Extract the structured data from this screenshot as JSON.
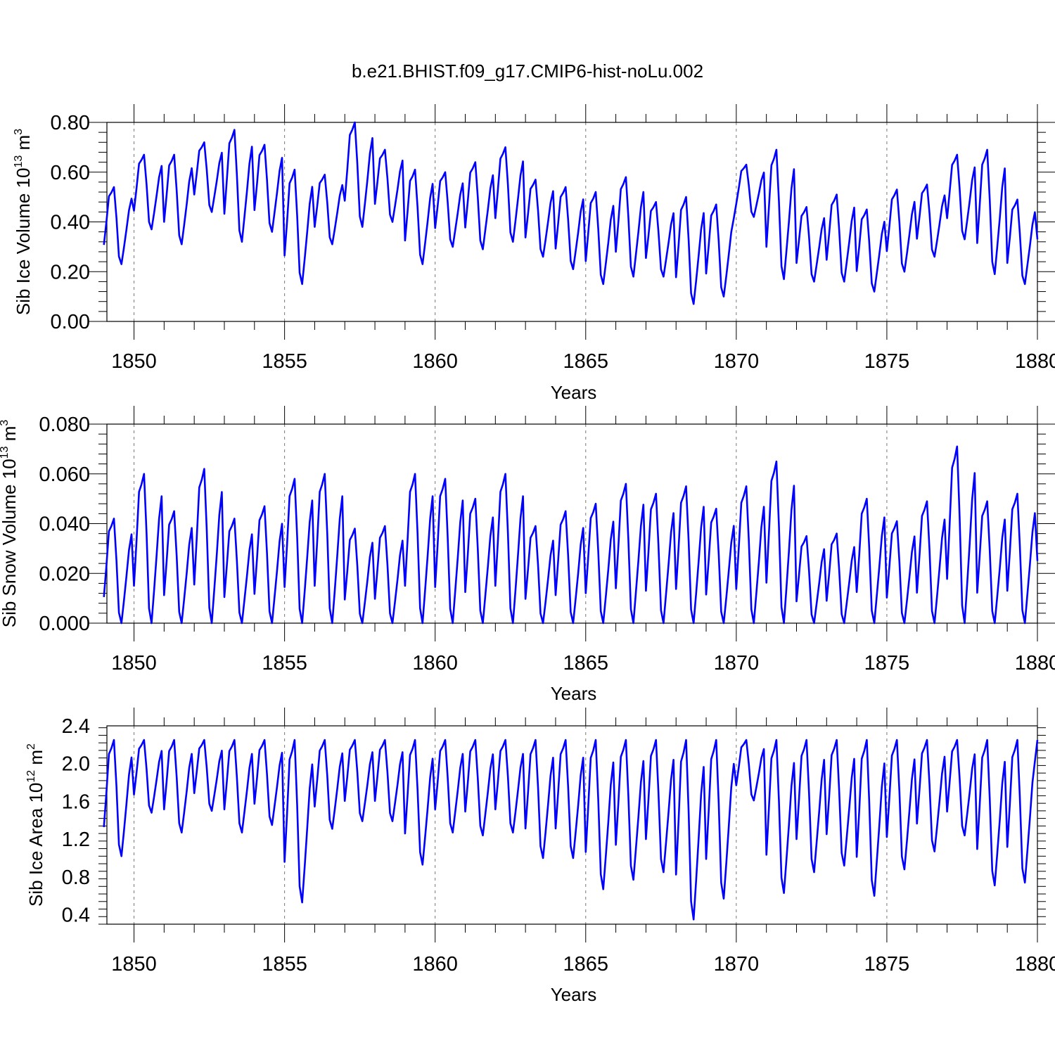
{
  "title": "b.e21.BHIST.f09_g17.CMIP6-hist-noLu.002",
  "colors": {
    "series": "#0000ff",
    "axis": "#000000",
    "grid": "#777777"
  },
  "chart_data": [
    {
      "type": "line",
      "name": "ice-volume",
      "ylabel": {
        "text": "Sib Ice Volume 10",
        "exp": "13",
        "unit": " m",
        "unit_exp": "3"
      },
      "xlabel": "Years",
      "xlim": [
        1849.1,
        1880.0
      ],
      "ylim": [
        0.0,
        0.8
      ],
      "xticks": [
        1850,
        1855,
        1860,
        1865,
        1870,
        1875,
        1880
      ],
      "xtick_labels": [
        "1850",
        "1855",
        "1860",
        "1865",
        "1870",
        "1875",
        "1880"
      ],
      "yticks": [
        0.0,
        0.2,
        0.4,
        0.6,
        0.8
      ],
      "ytick_labels": [
        "0.00",
        "0.20",
        "0.40",
        "0.60",
        "0.80"
      ],
      "gridlines": [
        1850,
        1855,
        1860,
        1865,
        1870,
        1875
      ],
      "series_name": "Sib Ice Volume",
      "start_year": 1849.0,
      "step_years": 0.08333,
      "annual": [
        {
          "max": 0.54,
          "min": 0.23
        },
        {
          "max": 0.67,
          "min": 0.37
        },
        {
          "max": 0.67,
          "min": 0.31
        },
        {
          "max": 0.72,
          "min": 0.44
        },
        {
          "max": 0.77,
          "min": 0.32
        },
        {
          "max": 0.71,
          "min": 0.36
        },
        {
          "max": 0.61,
          "min": 0.15
        },
        {
          "max": 0.59,
          "min": 0.31
        },
        {
          "max": 0.8,
          "min": 0.38
        },
        {
          "max": 0.69,
          "min": 0.4
        },
        {
          "max": 0.61,
          "min": 0.23
        },
        {
          "max": 0.6,
          "min": 0.3
        },
        {
          "max": 0.64,
          "min": 0.29
        },
        {
          "max": 0.7,
          "min": 0.32
        },
        {
          "max": 0.57,
          "min": 0.26
        },
        {
          "max": 0.54,
          "min": 0.21
        },
        {
          "max": 0.52,
          "min": 0.15
        },
        {
          "max": 0.58,
          "min": 0.18
        },
        {
          "max": 0.48,
          "min": 0.18
        },
        {
          "max": 0.5,
          "min": 0.07
        },
        {
          "max": 0.47,
          "min": 0.1
        },
        {
          "max": 0.63,
          "min": 0.42
        },
        {
          "max": 0.69,
          "min": 0.17
        },
        {
          "max": 0.46,
          "min": 0.16
        },
        {
          "max": 0.51,
          "min": 0.16
        },
        {
          "max": 0.45,
          "min": 0.12
        },
        {
          "max": 0.53,
          "min": 0.2
        },
        {
          "max": 0.55,
          "min": 0.26
        },
        {
          "max": 0.67,
          "min": 0.33
        },
        {
          "max": 0.69,
          "min": 0.19
        },
        {
          "max": 0.49,
          "min": 0.15
        },
        {
          "max": 0.33,
          "min": 0.33
        }
      ]
    },
    {
      "type": "line",
      "name": "snow-volume",
      "ylabel": {
        "text": "Sib Snow Volume 10",
        "exp": "13",
        "unit": " m",
        "unit_exp": "3"
      },
      "xlabel": "Years",
      "xlim": [
        1849.1,
        1880.0
      ],
      "ylim": [
        0.0,
        0.08
      ],
      "xticks": [
        1850,
        1855,
        1860,
        1865,
        1870,
        1875,
        1880
      ],
      "xtick_labels": [
        "1850",
        "1855",
        "1860",
        "1865",
        "1870",
        "1875",
        "1880"
      ],
      "yticks": [
        0.0,
        0.02,
        0.04,
        0.06,
        0.08
      ],
      "ytick_labels": [
        "0.000",
        "0.020",
        "0.040",
        "0.060",
        "0.080"
      ],
      "gridlines": [
        1850,
        1855,
        1860,
        1865,
        1870,
        1875
      ],
      "series_name": "Sib Snow Volume",
      "start_year": 1849.0,
      "step_years": 0.08333,
      "annual": [
        {
          "max": 0.042,
          "min": 0.0
        },
        {
          "max": 0.06,
          "min": 0.0
        },
        {
          "max": 0.045,
          "min": 0.0
        },
        {
          "max": 0.062,
          "min": 0.0
        },
        {
          "max": 0.042,
          "min": 0.0
        },
        {
          "max": 0.047,
          "min": 0.0
        },
        {
          "max": 0.058,
          "min": 0.0
        },
        {
          "max": 0.06,
          "min": 0.0
        },
        {
          "max": 0.038,
          "min": 0.0
        },
        {
          "max": 0.039,
          "min": 0.0
        },
        {
          "max": 0.06,
          "min": 0.0
        },
        {
          "max": 0.058,
          "min": 0.0
        },
        {
          "max": 0.05,
          "min": 0.0
        },
        {
          "max": 0.06,
          "min": 0.0
        },
        {
          "max": 0.039,
          "min": 0.0
        },
        {
          "max": 0.045,
          "min": 0.0
        },
        {
          "max": 0.048,
          "min": 0.0
        },
        {
          "max": 0.056,
          "min": 0.0
        },
        {
          "max": 0.052,
          "min": 0.0
        },
        {
          "max": 0.055,
          "min": 0.0
        },
        {
          "max": 0.046,
          "min": 0.0
        },
        {
          "max": 0.055,
          "min": 0.0
        },
        {
          "max": 0.065,
          "min": 0.0
        },
        {
          "max": 0.035,
          "min": 0.0
        },
        {
          "max": 0.036,
          "min": 0.0
        },
        {
          "max": 0.05,
          "min": 0.0
        },
        {
          "max": 0.041,
          "min": 0.0
        },
        {
          "max": 0.049,
          "min": 0.0
        },
        {
          "max": 0.071,
          "min": 0.0
        },
        {
          "max": 0.049,
          "min": 0.0
        },
        {
          "max": 0.052,
          "min": 0.0
        },
        {
          "max": 0.025,
          "min": 0.025
        }
      ]
    },
    {
      "type": "line",
      "name": "ice-area",
      "ylabel": {
        "text": "Sib Ice Area 10",
        "exp": "12",
        "unit": " m",
        "unit_exp": "2"
      },
      "xlabel": "Years",
      "xlim": [
        1849.1,
        1880.0
      ],
      "ylim": [
        0.3,
        2.4
      ],
      "xticks": [
        1850,
        1855,
        1860,
        1865,
        1870,
        1875,
        1880
      ],
      "xtick_labels": [
        "1850",
        "1855",
        "1860",
        "1865",
        "1870",
        "1875",
        "1880"
      ],
      "yticks": [
        0.4,
        0.8,
        1.2,
        1.6,
        2.0,
        2.4
      ],
      "ytick_labels": [
        "0.4",
        "0.8",
        "1.2",
        "1.6",
        "2.0",
        "2.4"
      ],
      "gridlines": [
        1850,
        1855,
        1860,
        1865,
        1870,
        1875
      ],
      "series_name": "Sib Ice Area",
      "start_year": 1849.0,
      "step_years": 0.08333,
      "annual": [
        {
          "max": 2.25,
          "min": 1.02
        },
        {
          "max": 2.25,
          "min": 1.48
        },
        {
          "max": 2.25,
          "min": 1.27
        },
        {
          "max": 2.25,
          "min": 1.5
        },
        {
          "max": 2.25,
          "min": 1.27
        },
        {
          "max": 2.25,
          "min": 1.35
        },
        {
          "max": 2.25,
          "min": 0.53
        },
        {
          "max": 2.25,
          "min": 1.31
        },
        {
          "max": 2.25,
          "min": 1.39
        },
        {
          "max": 2.25,
          "min": 1.39
        },
        {
          "max": 2.25,
          "min": 0.93
        },
        {
          "max": 2.25,
          "min": 1.27
        },
        {
          "max": 2.25,
          "min": 1.24
        },
        {
          "max": 2.25,
          "min": 1.27
        },
        {
          "max": 2.25,
          "min": 1.0
        },
        {
          "max": 2.25,
          "min": 1.0
        },
        {
          "max": 2.25,
          "min": 0.67
        },
        {
          "max": 2.25,
          "min": 0.77
        },
        {
          "max": 2.25,
          "min": 0.85
        },
        {
          "max": 2.25,
          "min": 0.35
        },
        {
          "max": 2.25,
          "min": 0.57
        },
        {
          "max": 2.25,
          "min": 1.61
        },
        {
          "max": 2.25,
          "min": 0.63
        },
        {
          "max": 2.25,
          "min": 0.85
        },
        {
          "max": 2.25,
          "min": 0.92
        },
        {
          "max": 2.25,
          "min": 0.6
        },
        {
          "max": 2.25,
          "min": 0.88
        },
        {
          "max": 2.25,
          "min": 1.07
        },
        {
          "max": 2.25,
          "min": 1.24
        },
        {
          "max": 2.25,
          "min": 0.71
        },
        {
          "max": 2.25,
          "min": 0.74
        },
        {
          "max": 2.25,
          "min": 2.25
        }
      ]
    }
  ]
}
